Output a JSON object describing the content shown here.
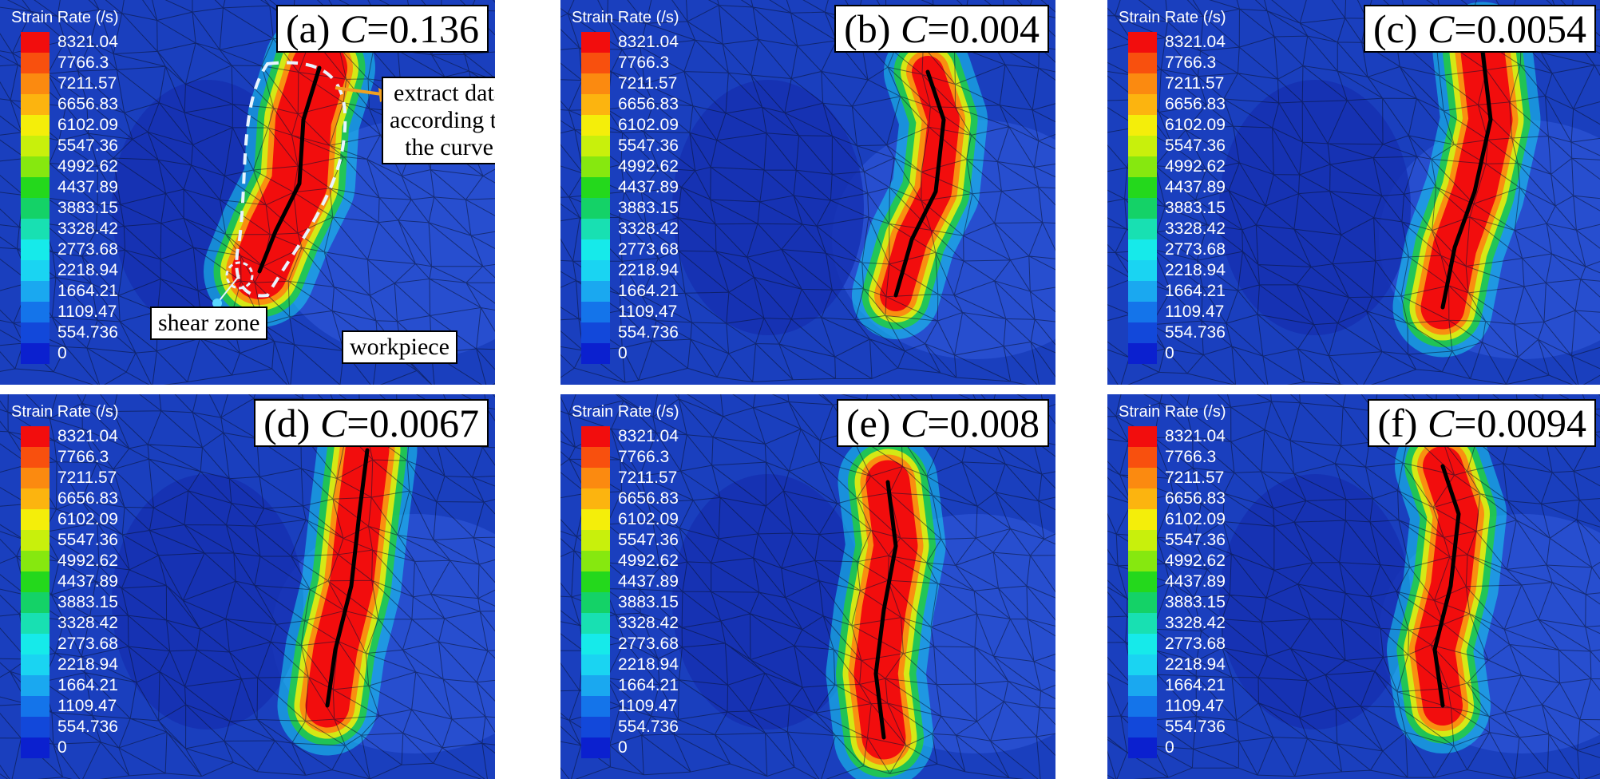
{
  "figure": {
    "legend_title": "Strain Rate (/s)",
    "legend_values": [
      "8321.04",
      "7766.3",
      "7211.57",
      "6656.83",
      "6102.09",
      "5547.36",
      "4992.62",
      "4437.89",
      "3883.15",
      "3328.42",
      "2773.68",
      "2218.94",
      "1664.21",
      "1109.47",
      "554.736",
      "0"
    ],
    "legend_colors": [
      "#f20d0d",
      "#f8500e",
      "#fb8a10",
      "#fcb40f",
      "#f4ee0a",
      "#c8f00c",
      "#86e80f",
      "#24d81c",
      "#14d267",
      "#18e0b2",
      "#16eaea",
      "#1ad4f2",
      "#1aa8f0",
      "#1474ea",
      "#1248da",
      "#0b20cf"
    ],
    "colors": {
      "background": "#1a3fbe",
      "high_strain": "#f20d0d",
      "mesh_line": "#0a1230",
      "annotation_arrow": "#f0a020",
      "dashed_outline": "#e8f4ff"
    },
    "panels": [
      {
        "prefix": "(a) ",
        "var": "C",
        "value": "=0.136"
      },
      {
        "prefix": "(b) ",
        "var": "C",
        "value": "=0.004"
      },
      {
        "prefix": "(c) ",
        "var": "C",
        "value": "=0.0054"
      },
      {
        "prefix": "(d) ",
        "var": "C",
        "value": "=0.0067"
      },
      {
        "prefix": "(e) ",
        "var": "C",
        "value": "=0.008"
      },
      {
        "prefix": "(f) ",
        "var": "C",
        "value": "=0.0094"
      }
    ],
    "annotations": {
      "extract_line1": "extract data",
      "extract_line2": "according to",
      "extract_line3": "the curve",
      "shear_zone": "shear zone",
      "workpiece": "workpiece"
    }
  }
}
